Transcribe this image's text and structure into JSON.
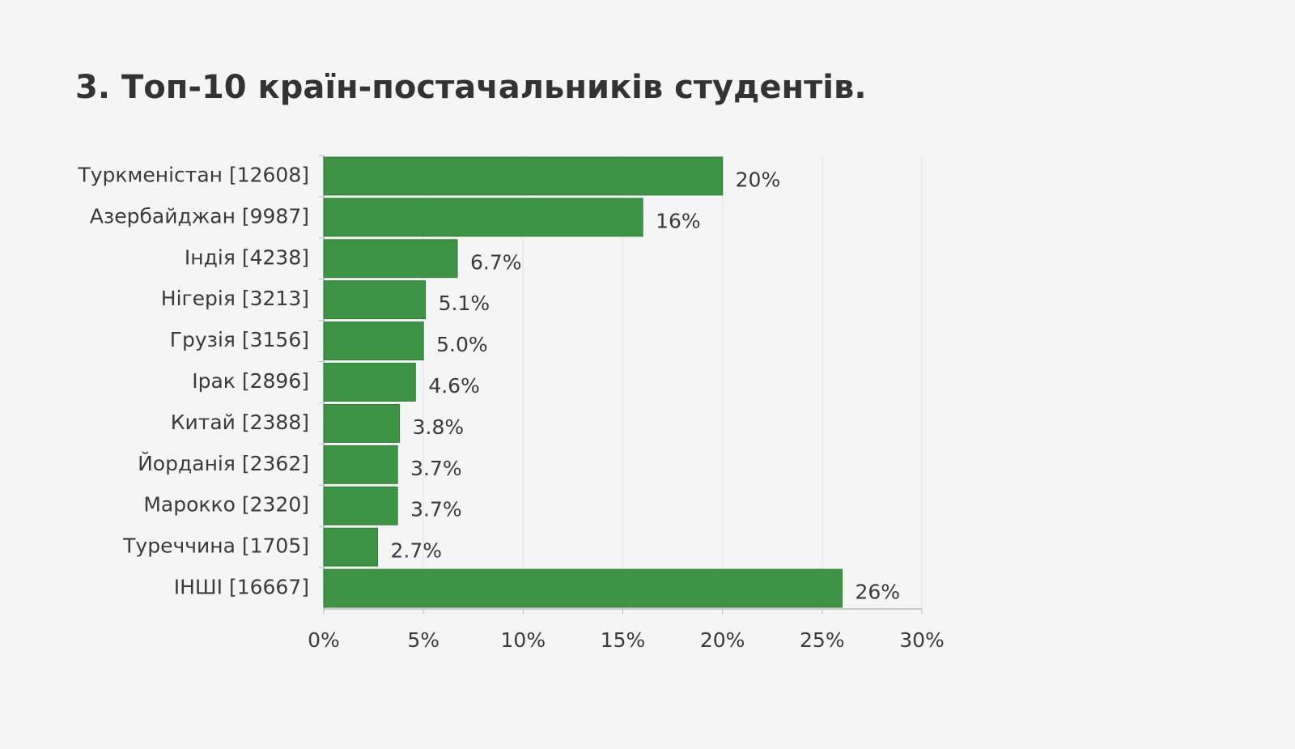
{
  "chart_data": {
    "type": "barh",
    "title": "3. Топ-10 країн-постачальників студентів.",
    "categories": [
      "Туркменістан [12608]",
      "Азербайджан [9987]",
      "Індія [4238]",
      "Нігерія [3213]",
      "Грузія [3156]",
      "Ірак [2896]",
      "Китай [2388]",
      "Йорданія [2362]",
      "Марокко [2320]",
      "Туреччина [1705]",
      "ІНШІ [16667]"
    ],
    "values": [
      20,
      16,
      6.7,
      5.1,
      5.0,
      4.6,
      3.8,
      3.7,
      3.7,
      2.7,
      26
    ],
    "value_labels": [
      "20%",
      "16%",
      "6.7%",
      "5.1%",
      "5.0%",
      "4.6%",
      "3.8%",
      "3.7%",
      "3.7%",
      "2.7%",
      "26%"
    ],
    "color": "#3d9445",
    "xlim": [
      0,
      30
    ],
    "xticks": [
      {
        "value": 0,
        "label": "0%"
      },
      {
        "value": 5,
        "label": "5%"
      },
      {
        "value": 10,
        "label": "10%"
      },
      {
        "value": 15,
        "label": "15%"
      },
      {
        "value": 20,
        "label": "20%"
      },
      {
        "value": 25,
        "label": "25%"
      },
      {
        "value": 30,
        "label": "30%"
      }
    ],
    "grid": true
  }
}
